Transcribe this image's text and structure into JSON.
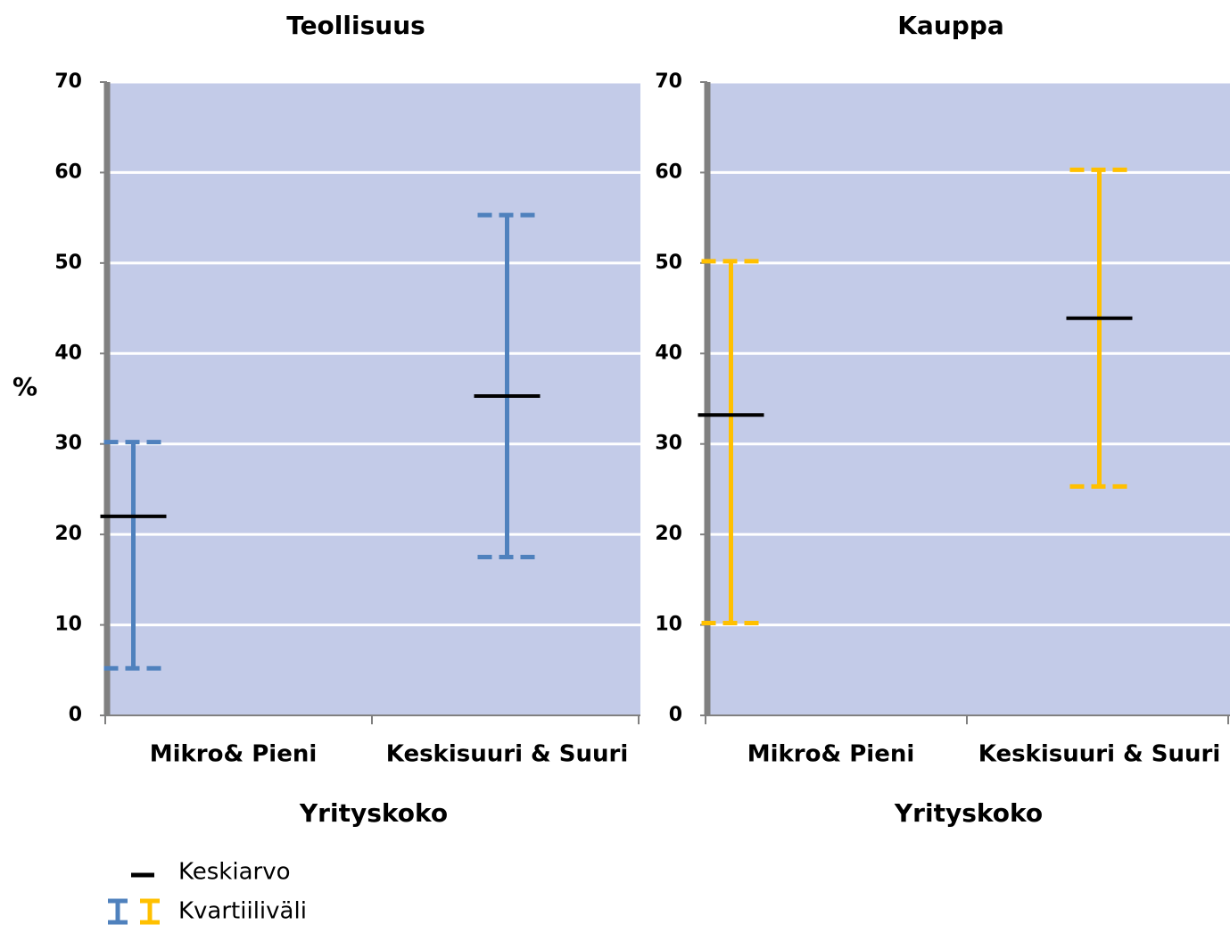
{
  "chart_data": [
    {
      "type": "range",
      "title": "Teollisuus",
      "x_label": "Yrityskoko",
      "y_label": "%",
      "categories": [
        "Mikro& Pieni",
        "Keskisuuri & Suuri"
      ],
      "mean": [
        22,
        35.3
      ],
      "q1": [
        5.2,
        17.5
      ],
      "q3": [
        30.2,
        55.3
      ],
      "color": "#4f81bd",
      "mean_color": "#000000",
      "ylim": [
        0,
        70
      ],
      "yticks": [
        0,
        10,
        20,
        30,
        40,
        50,
        60,
        70
      ],
      "grid": true
    },
    {
      "type": "range",
      "title": "Kauppa",
      "x_label": "Yrityskoko",
      "categories": [
        "Mikro& Pieni",
        "Keskisuuri & Suuri"
      ],
      "mean": [
        33.2,
        43.9
      ],
      "q1": [
        10.2,
        25.3
      ],
      "q3": [
        50.2,
        60.3
      ],
      "color": "#ffc000",
      "mean_color": "#000000",
      "ylim": [
        0,
        70
      ],
      "yticks": [
        0,
        10,
        20,
        30,
        40,
        50,
        60,
        70
      ],
      "grid": true
    }
  ],
  "legend": {
    "mean": "Keskiarvo",
    "range": "Kvartiiliväli"
  }
}
